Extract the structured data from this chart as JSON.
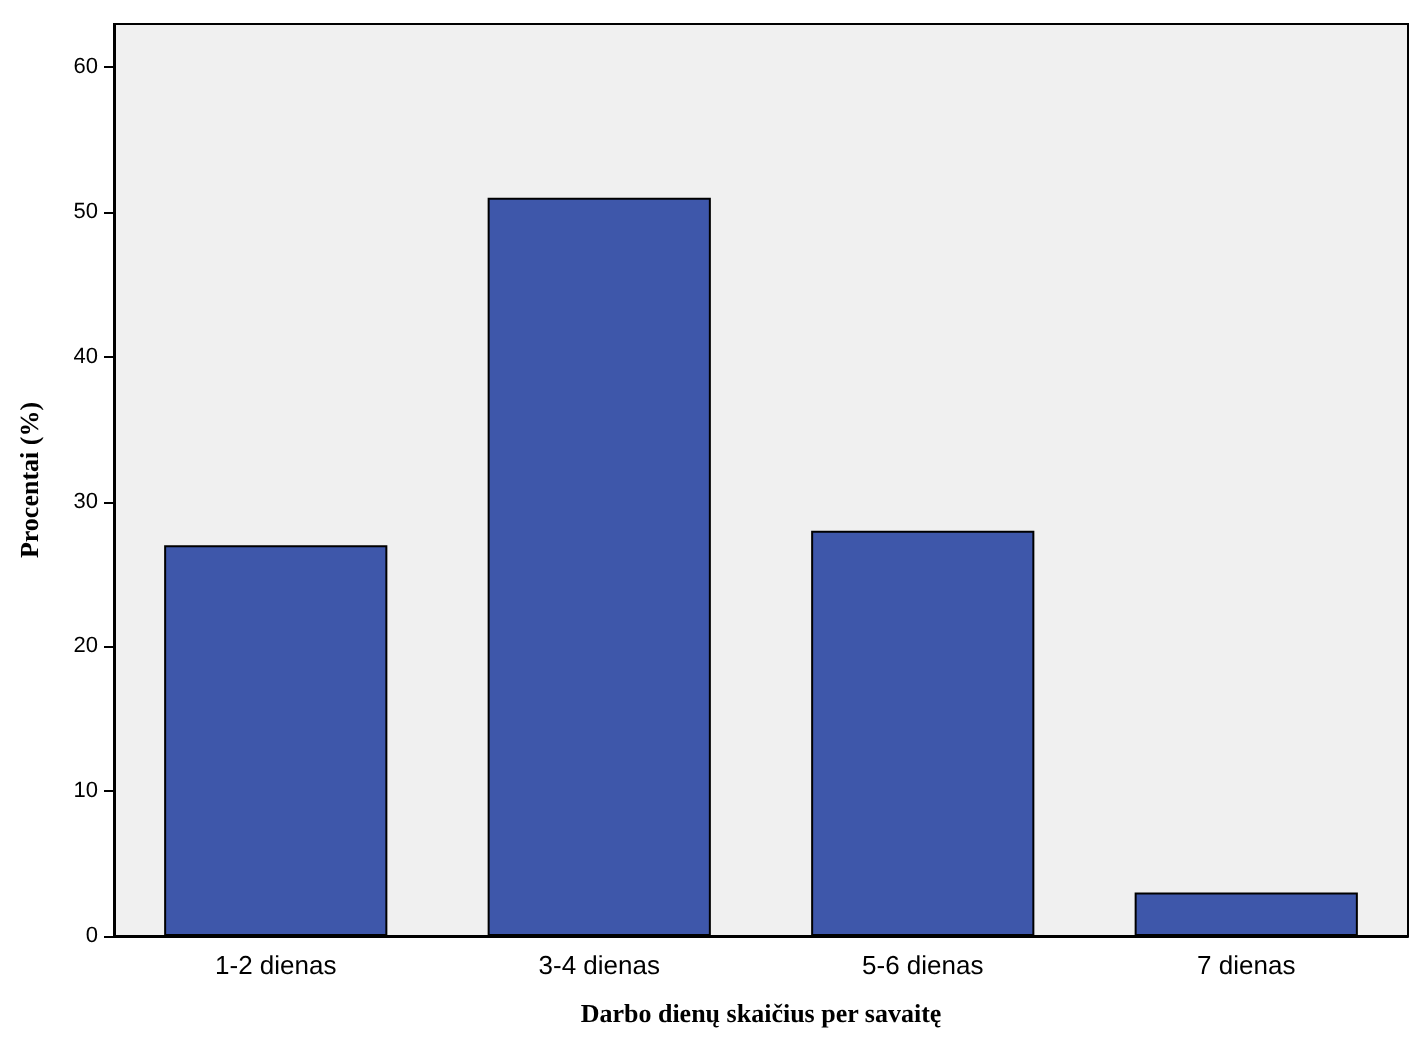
{
  "chart_data": {
    "type": "bar",
    "xlabel": "Darbo dienų skaičius per savaitę",
    "ylabel": "Procentai (%)",
    "categories": [
      "1-2 dienas",
      "3-4 dienas",
      "5-6 dienas",
      "7 dienas"
    ],
    "values": [
      27,
      51,
      28,
      3
    ],
    "color": "#3e57aa",
    "ylim": [
      0,
      63
    ],
    "yticks": [
      0,
      10,
      20,
      30,
      40,
      50,
      60
    ],
    "grid": false
  }
}
